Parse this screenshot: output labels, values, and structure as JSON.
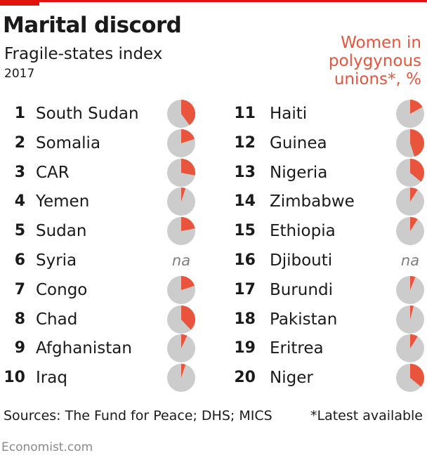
{
  "header": {
    "title": "Marital discord",
    "subtitle": "Fragile-states index",
    "year": "2017",
    "legend": "Women in polygynous unions*, %"
  },
  "chart_data": {
    "type": "pie",
    "title": "Marital discord",
    "subtitle": "Fragile-states index",
    "value_label": "Women in polygynous unions*, %",
    "rows": [
      {
        "rank": "1",
        "country": "South Sudan",
        "value": 40
      },
      {
        "rank": "2",
        "country": "Somalia",
        "value": 20
      },
      {
        "rank": "3",
        "country": "CAR",
        "value": 28
      },
      {
        "rank": "4",
        "country": "Yemen",
        "value": 5
      },
      {
        "rank": "5",
        "country": "Sudan",
        "value": 22
      },
      {
        "rank": "6",
        "country": "Syria",
        "value": null,
        "label": "na"
      },
      {
        "rank": "7",
        "country": "Congo",
        "value": 20
      },
      {
        "rank": "8",
        "country": "Chad",
        "value": 38
      },
      {
        "rank": "9",
        "country": "Afghanistan",
        "value": 7
      },
      {
        "rank": "10",
        "country": "Iraq",
        "value": 5
      },
      {
        "rank": "11",
        "country": "Haiti",
        "value": 17
      },
      {
        "rank": "12",
        "country": "Guinea",
        "value": 45
      },
      {
        "rank": "13",
        "country": "Nigeria",
        "value": 36
      },
      {
        "rank": "14",
        "country": "Zimbabwe",
        "value": 9
      },
      {
        "rank": "15",
        "country": "Ethiopia",
        "value": 9
      },
      {
        "rank": "16",
        "country": "Djibouti",
        "value": null,
        "label": "na"
      },
      {
        "rank": "17",
        "country": "Burundi",
        "value": 6
      },
      {
        "rank": "18",
        "country": "Pakistan",
        "value": 4
      },
      {
        "rank": "19",
        "country": "Eritrea",
        "value": 9
      },
      {
        "rank": "20",
        "country": "Niger",
        "value": 36
      }
    ]
  },
  "colors": {
    "slice": "#e8553c",
    "pie_bg": "#cccccc",
    "accent": "#e3120b"
  },
  "footer": {
    "sources": "Sources: The Fund for Peace; DHS; MICS",
    "note": "*Latest available",
    "credit": "Economist.com"
  }
}
